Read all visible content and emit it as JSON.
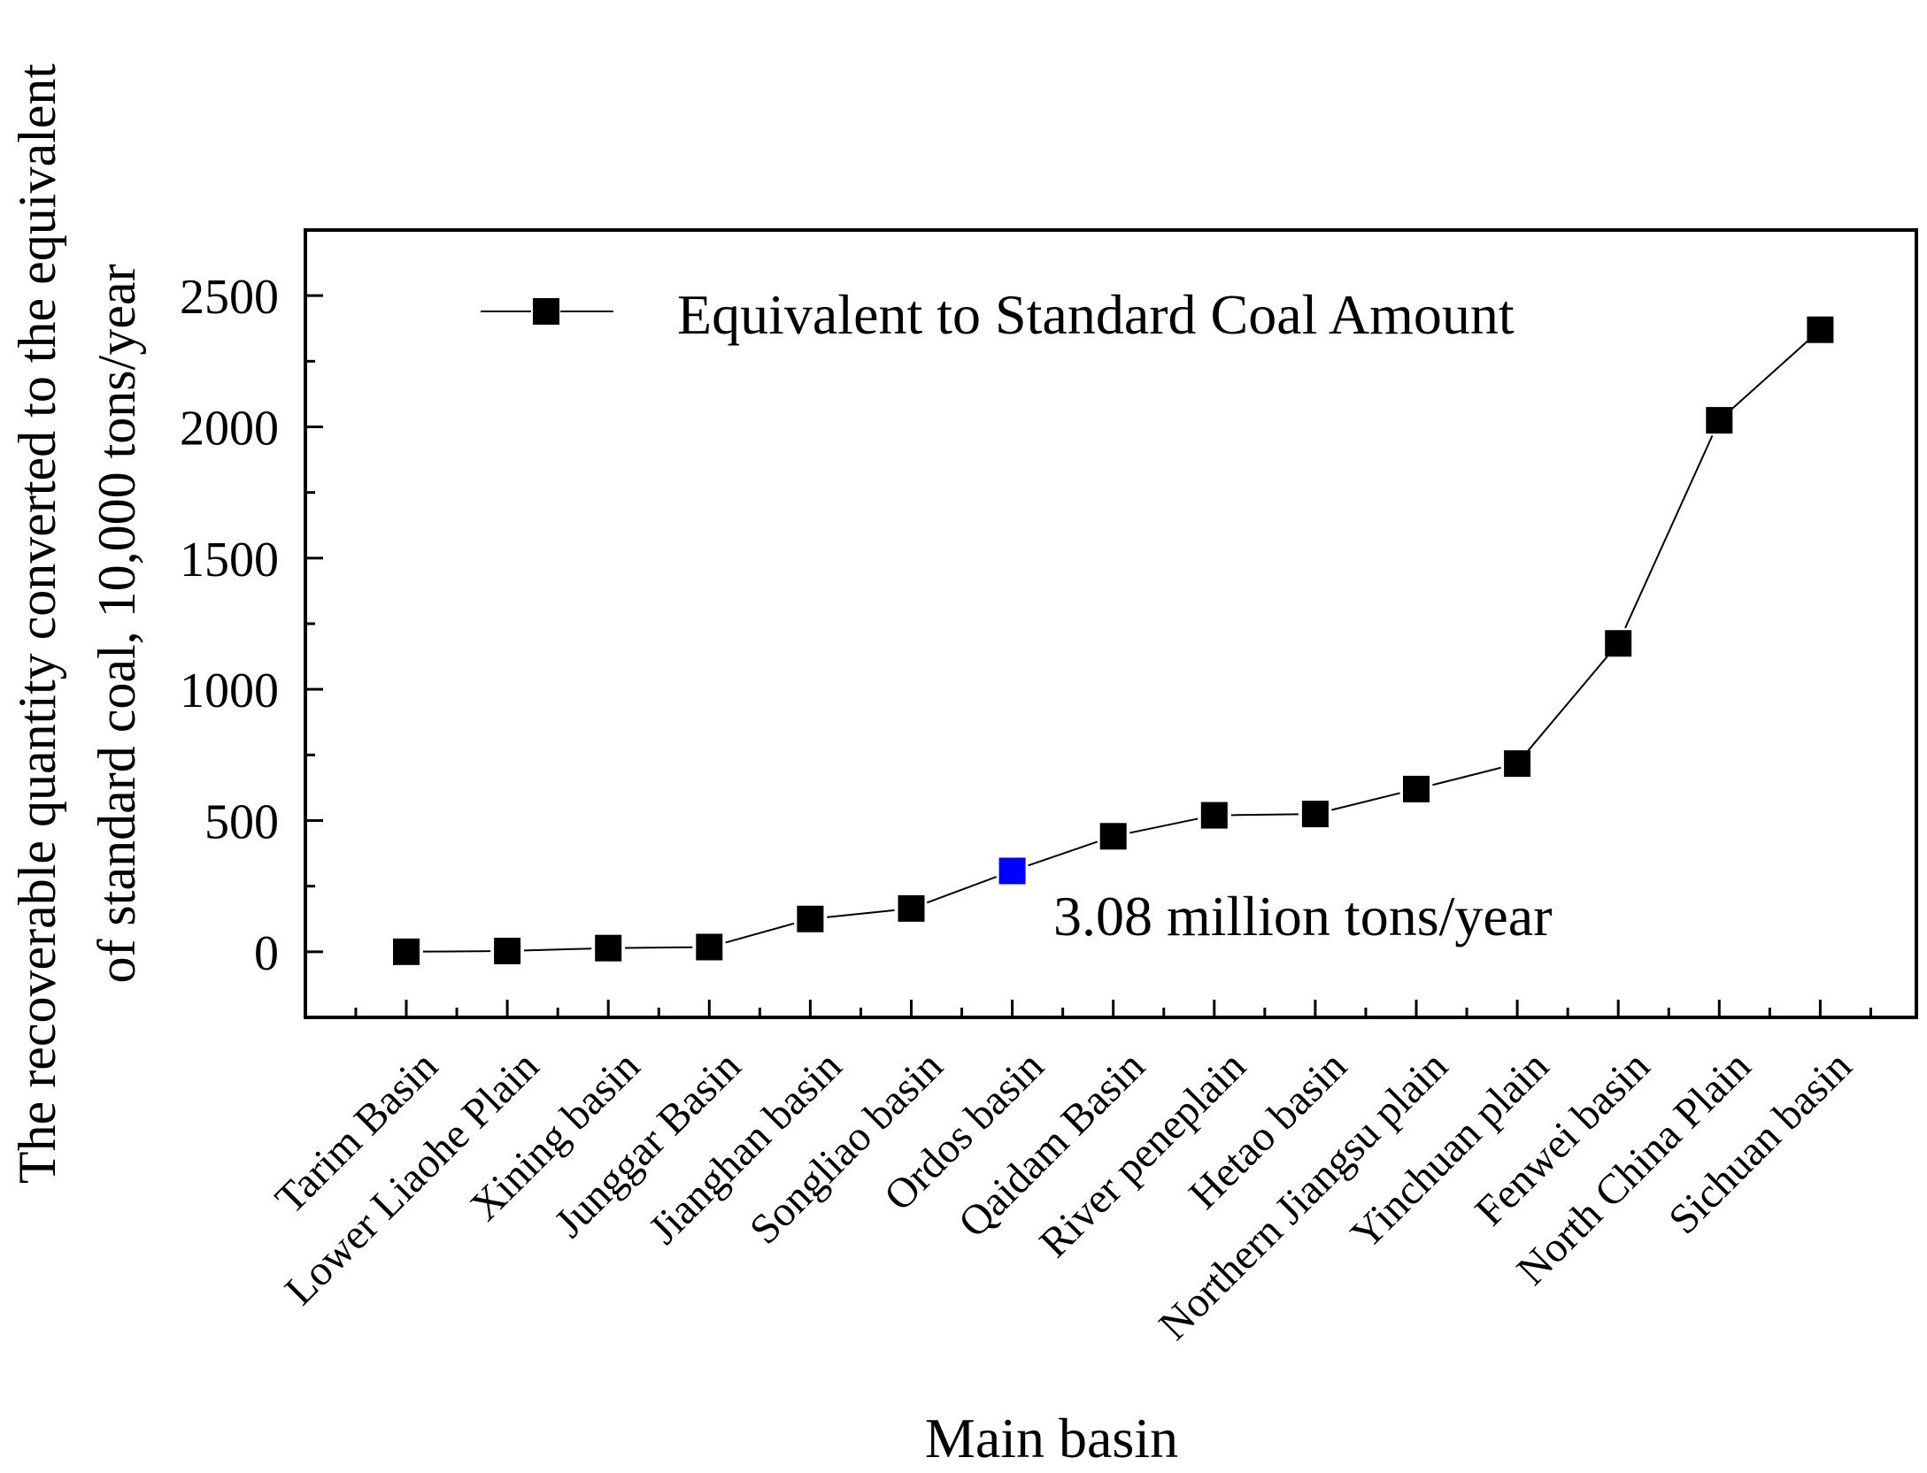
{
  "chart_data": {
    "type": "line",
    "title": "",
    "xlabel": "Main basin",
    "ylabel_line1": "The recoverable quantity converted to the equivalent",
    "ylabel_line2": "of standard coal, 10,000 tons/year",
    "categories": [
      "Tarim Basin",
      "Lower Liaohe Plain",
      "Xining basin",
      "Junggar Basin",
      "Jianghan basin",
      "Songliao basin",
      "Ordos basin",
      "Qaidam Basin",
      "River peneplain",
      "Hetao basin",
      "Northern Jiangsu plain",
      "Yinchuan plain",
      "Fenwei basin",
      "North China Plain",
      "Sichuan basin"
    ],
    "series": [
      {
        "name": "Equivalent to Standard Coal Amount",
        "values": [
          0,
          3,
          14,
          18,
          125,
          165,
          308,
          440,
          520,
          525,
          620,
          717,
          1175,
          2025,
          2370
        ],
        "color": "#000000",
        "highlight_index": 6,
        "highlight_color": "#0000ff"
      }
    ],
    "ylim": [
      -250,
      2750
    ],
    "yticks": [
      0,
      500,
      1000,
      1500,
      2000,
      2500
    ],
    "legend_position": "top",
    "annotation": "3.08 million tons/year",
    "grid": false
  }
}
